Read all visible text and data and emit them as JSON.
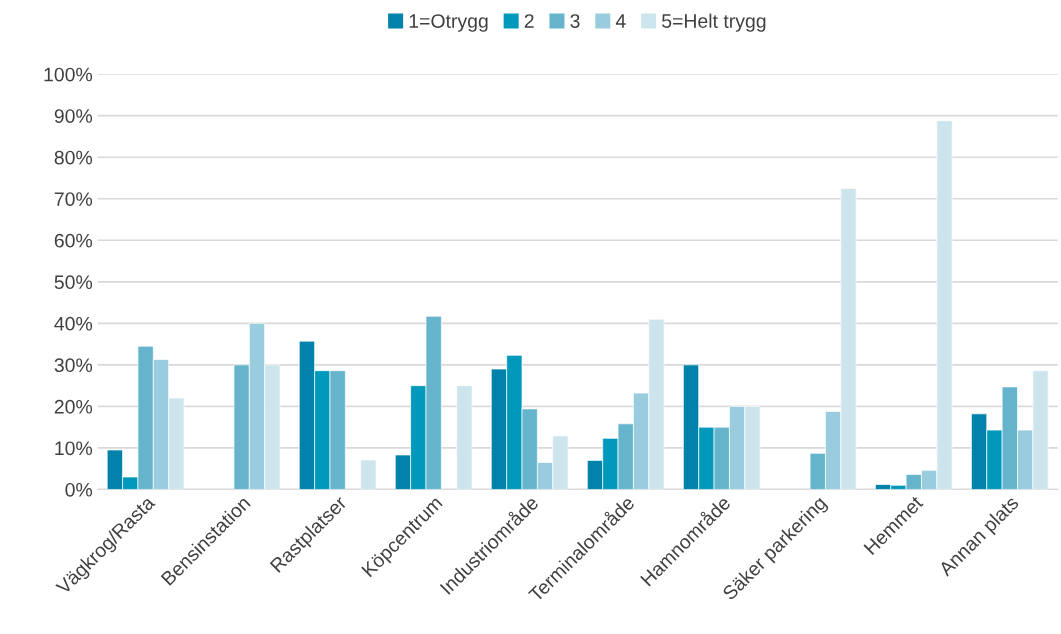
{
  "chart_data": {
    "type": "bar",
    "categories": [
      "Vägkrog/Rasta",
      "Bensinstation",
      "Rastplatser",
      "Köpcentrum",
      "Industriområde",
      "Terminalområde",
      "Hamnområde",
      "Säker parkering",
      "Hemmet",
      "Annan plats"
    ],
    "series": [
      {
        "name": "1=Otrygg",
        "color": "#0082aa",
        "values": [
          9.5,
          null,
          35.7,
          8.3,
          29,
          7,
          30,
          null,
          1.2,
          18.2
        ]
      },
      {
        "name": "2",
        "color": "#0099bb",
        "values": [
          3,
          null,
          28.6,
          25,
          32.3,
          12.3,
          15,
          null,
          1,
          14.3
        ]
      },
      {
        "name": "3",
        "color": "#66b3cc",
        "values": [
          34.5,
          30,
          28.6,
          41.7,
          19.4,
          15.8,
          15,
          8.7,
          3.6,
          24.7
        ]
      },
      {
        "name": "4",
        "color": "#99cddd",
        "values": [
          31.3,
          40,
          null,
          null,
          6.5,
          23.2,
          20,
          18.8,
          4.6,
          14.3
        ]
      },
      {
        "name": "5=Helt trygg",
        "color": "#cce5ec",
        "values": [
          22,
          30,
          7.1,
          25,
          12.9,
          41,
          20,
          72.5,
          88.8,
          28.6
        ]
      }
    ],
    "ylim": [
      0,
      100
    ],
    "yticks": [
      {
        "value": 0,
        "label": "0%"
      },
      {
        "value": 10,
        "label": "10%"
      },
      {
        "value": 20,
        "label": "20%"
      },
      {
        "value": 30,
        "label": "30%"
      },
      {
        "value": 40,
        "label": "40%"
      },
      {
        "value": 50,
        "label": "50%"
      },
      {
        "value": 60,
        "label": "60%"
      },
      {
        "value": 70,
        "label": "70%"
      },
      {
        "value": 80,
        "label": "80%"
      },
      {
        "value": 90,
        "label": "90%"
      },
      {
        "value": 100,
        "label": "100%"
      }
    ],
    "grid": "y",
    "legend": "top"
  }
}
